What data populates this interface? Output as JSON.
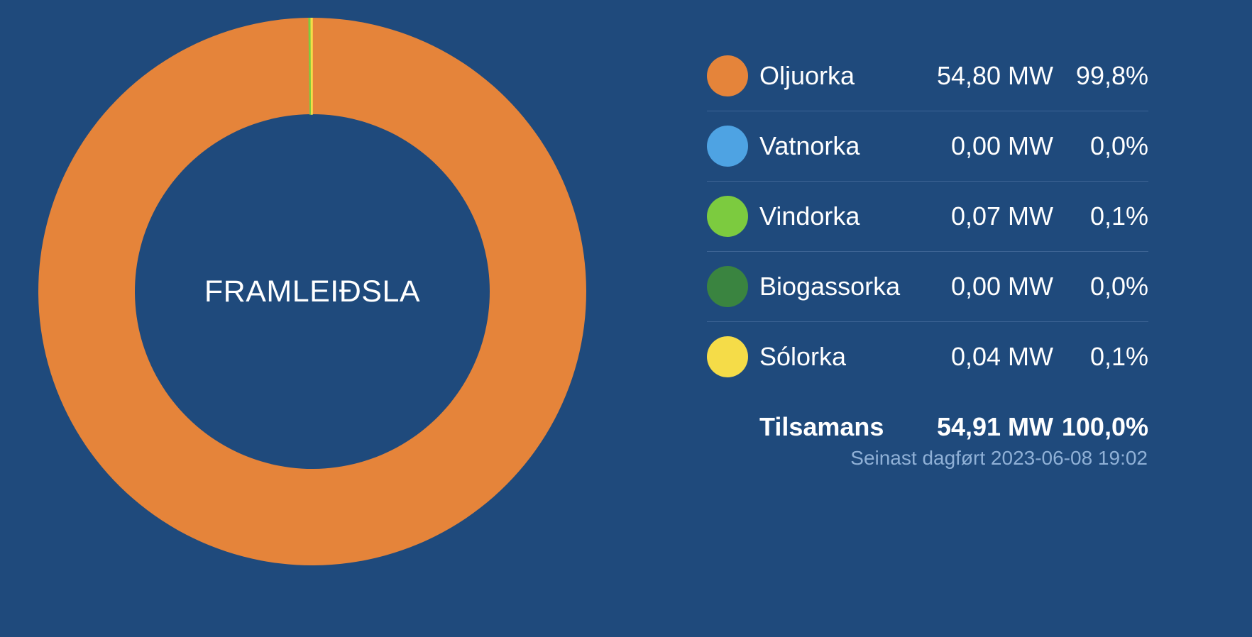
{
  "chart_data": {
    "type": "pie",
    "center_label": "FRAMLEIÐSLA",
    "slices": [
      {
        "name": "Oljuorka",
        "mw": 54.8,
        "mw_label": "54,80 MW",
        "pct_label": "99,8%",
        "color": "#e5843a"
      },
      {
        "name": "Vatnorka",
        "mw": 0.0,
        "mw_label": "0,00 MW",
        "pct_label": "0,0%",
        "color": "#4ea3e3"
      },
      {
        "name": "Vindorka",
        "mw": 0.07,
        "mw_label": "0,07 MW",
        "pct_label": "0,1%",
        "color": "#7ccb3f"
      },
      {
        "name": "Biogassorka",
        "mw": 0.0,
        "mw_label": "0,00 MW",
        "pct_label": "0,0%",
        "color": "#3a8440"
      },
      {
        "name": "Sólorka",
        "mw": 0.04,
        "mw_label": "0,04 MW",
        "pct_label": "0,1%",
        "color": "#f5dc48"
      }
    ],
    "total": {
      "label": "Tilsamans",
      "mw_label": "54,91 MW",
      "pct_label": "100,0%"
    }
  },
  "footer": {
    "updated": "Seinast dagført 2023-06-08 19:02"
  },
  "colors": {
    "background": "#1f4a7c",
    "divider": "#3d6494",
    "muted_text": "#8fb0d6"
  }
}
